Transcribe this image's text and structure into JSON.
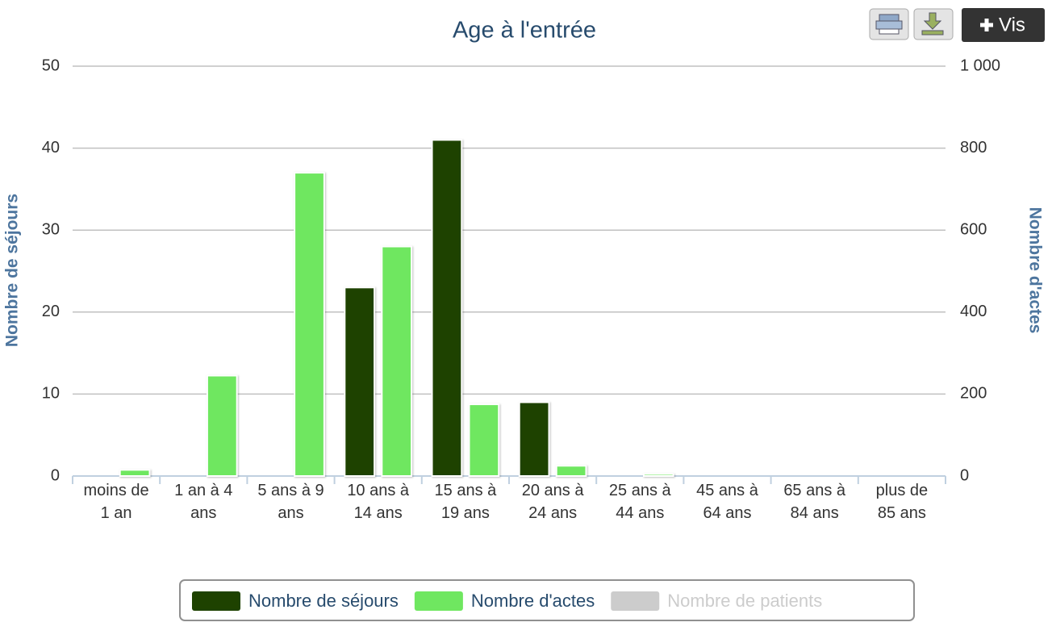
{
  "chart_data": {
    "type": "bar",
    "title": "Age à l'entrée",
    "y_axis_label": "Nombre de séjours",
    "y2_axis_label": "Nombre d'actes",
    "categories": [
      "moins de 1 an",
      "1 an à 4 ans",
      "5 ans à 9 ans",
      "10 ans à 14 ans",
      "15 ans à 19 ans",
      "20 ans à 24 ans",
      "25 ans à 44 ans",
      "45 ans à 64 ans",
      "65 ans à 84 ans",
      "plus de 85 ans"
    ],
    "series": [
      {
        "name": "Nombre de séjours",
        "color": "#1e4200",
        "values": [
          0,
          0,
          0,
          23,
          41,
          9,
          0,
          0,
          0,
          0
        ]
      },
      {
        "name": "Nombre d'actes",
        "color": "#6fe760",
        "axis": "y2",
        "values": [
          15,
          245,
          740,
          560,
          175,
          25,
          5,
          0,
          0,
          0
        ]
      },
      {
        "name": "Nombre de patients",
        "color": "#c0c0c0",
        "visible": false,
        "values": [
          null,
          null,
          null,
          null,
          null,
          null,
          null,
          null,
          null,
          null
        ]
      }
    ],
    "ylim": [
      0,
      50
    ],
    "yticks": [
      0,
      10,
      20,
      30,
      40,
      50
    ],
    "y2lim": [
      0,
      1000
    ],
    "y2ticks": [
      0,
      200,
      400,
      600,
      800,
      {
        "value": 1000,
        "label": "1 000"
      }
    ],
    "grid": true,
    "legend": "bottom"
  },
  "toolbar": {
    "vis_label": "Vis"
  }
}
